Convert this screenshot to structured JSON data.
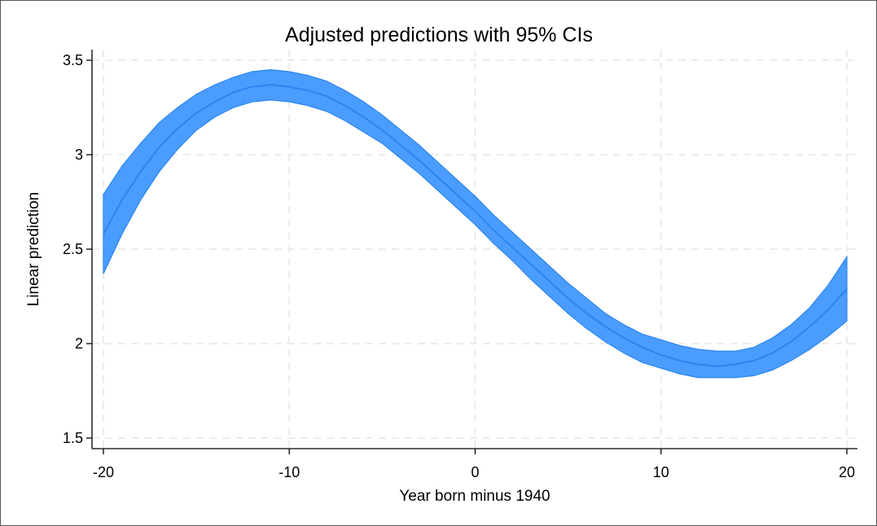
{
  "chart_data": {
    "type": "line",
    "title": "Adjusted predictions with 95% CIs",
    "xlabel": "Year born minus 1940",
    "ylabel": "Linear prediction",
    "xlim": [
      -20,
      20
    ],
    "ylim": [
      1.5,
      3.5
    ],
    "x_ticks": [
      -20,
      -10,
      0,
      10,
      20
    ],
    "x_tick_labels": [
      "-20",
      "-10",
      "0",
      "10",
      "20"
    ],
    "y_ticks": [
      1.5,
      2,
      2.5,
      3,
      3.5
    ],
    "y_tick_labels": [
      "1.5",
      "2",
      "2.5",
      "3",
      "3.5"
    ],
    "grid": true,
    "legend": "none",
    "colors": {
      "band": "#4A9DFF",
      "line": "#2B84F0",
      "grid": "#E6E6E6",
      "axis": "#000000"
    },
    "series": [
      {
        "x": [
          -20,
          -19,
          -18,
          -17,
          -16,
          -15,
          -14,
          -13,
          -12,
          -11,
          -10,
          -9,
          -8,
          -7,
          -6,
          -5,
          -4,
          -3,
          -2,
          -1,
          0,
          1,
          2,
          3,
          4,
          5,
          6,
          7,
          8,
          9,
          10,
          11,
          12,
          13,
          14,
          15,
          16,
          17,
          18,
          19,
          20
        ],
        "y": [
          2.58,
          2.76,
          2.91,
          3.04,
          3.14,
          3.22,
          3.28,
          3.33,
          3.36,
          3.37,
          3.36,
          3.34,
          3.31,
          3.26,
          3.2,
          3.13,
          3.05,
          2.97,
          2.88,
          2.79,
          2.7,
          2.6,
          2.51,
          2.42,
          2.33,
          2.24,
          2.16,
          2.09,
          2.03,
          1.98,
          1.94,
          1.91,
          1.89,
          1.88,
          1.89,
          1.91,
          1.95,
          2.01,
          2.09,
          2.18,
          2.29
        ],
        "lower": [
          2.37,
          2.58,
          2.76,
          2.91,
          3.03,
          3.13,
          3.2,
          3.25,
          3.28,
          3.29,
          3.28,
          3.26,
          3.23,
          3.18,
          3.12,
          3.06,
          2.98,
          2.9,
          2.81,
          2.72,
          2.63,
          2.53,
          2.44,
          2.34,
          2.25,
          2.16,
          2.08,
          2.01,
          1.95,
          1.9,
          1.87,
          1.84,
          1.82,
          1.82,
          1.82,
          1.83,
          1.86,
          1.91,
          1.97,
          2.04,
          2.12
        ],
        "upper": [
          2.79,
          2.94,
          3.06,
          3.17,
          3.25,
          3.32,
          3.37,
          3.41,
          3.44,
          3.45,
          3.44,
          3.42,
          3.39,
          3.34,
          3.28,
          3.21,
          3.13,
          3.05,
          2.96,
          2.87,
          2.78,
          2.68,
          2.59,
          2.5,
          2.41,
          2.32,
          2.24,
          2.16,
          2.1,
          2.05,
          2.02,
          1.99,
          1.97,
          1.96,
          1.96,
          1.98,
          2.03,
          2.1,
          2.19,
          2.31,
          2.46
        ]
      }
    ]
  }
}
